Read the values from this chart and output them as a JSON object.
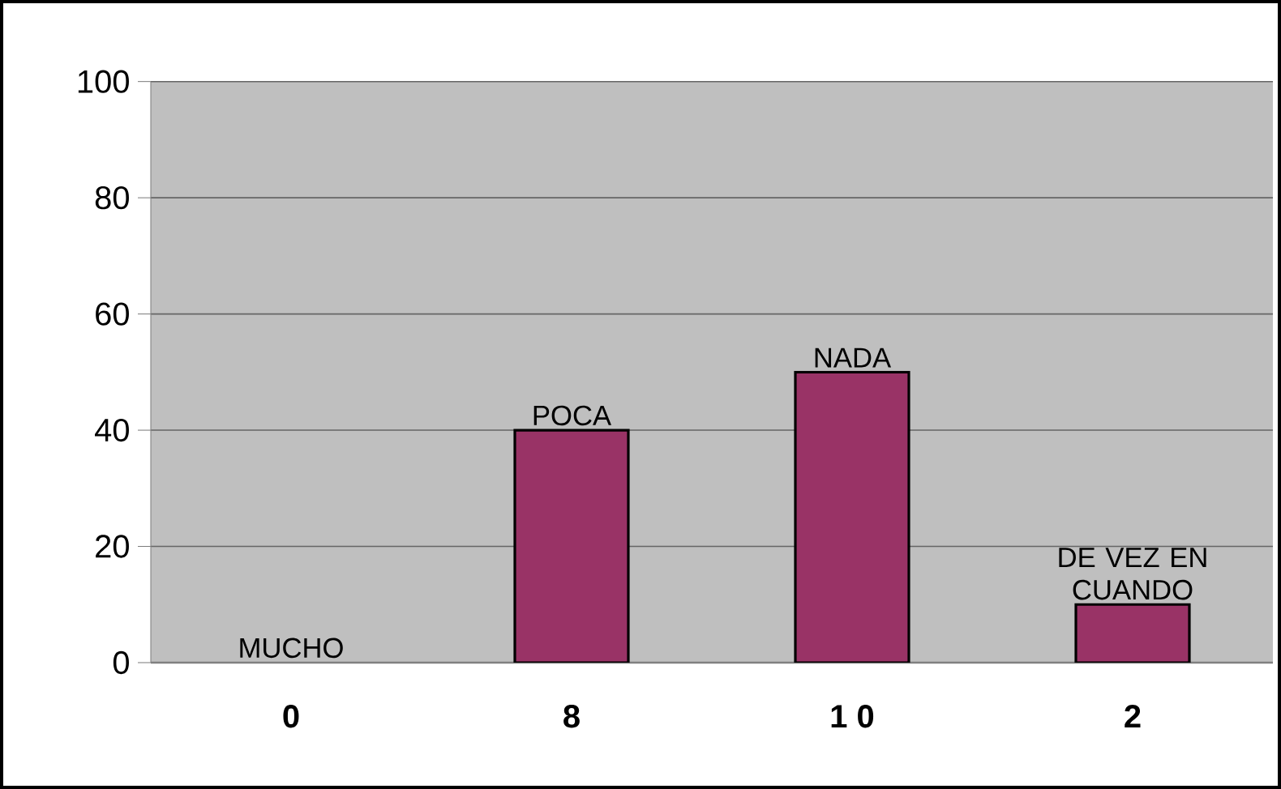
{
  "chart_data": {
    "type": "bar",
    "categories": [
      "0",
      "8",
      "1 0",
      "2"
    ],
    "values": [
      0,
      40,
      50,
      10
    ],
    "value_labels": [
      "MUCHO",
      "POCA",
      "NADA",
      "DE VEZ EN CUANDO"
    ],
    "color": "#993366",
    "ylim": [
      0,
      100
    ],
    "yticks": [
      0,
      20,
      40,
      60,
      80,
      100
    ],
    "grid": "y"
  }
}
